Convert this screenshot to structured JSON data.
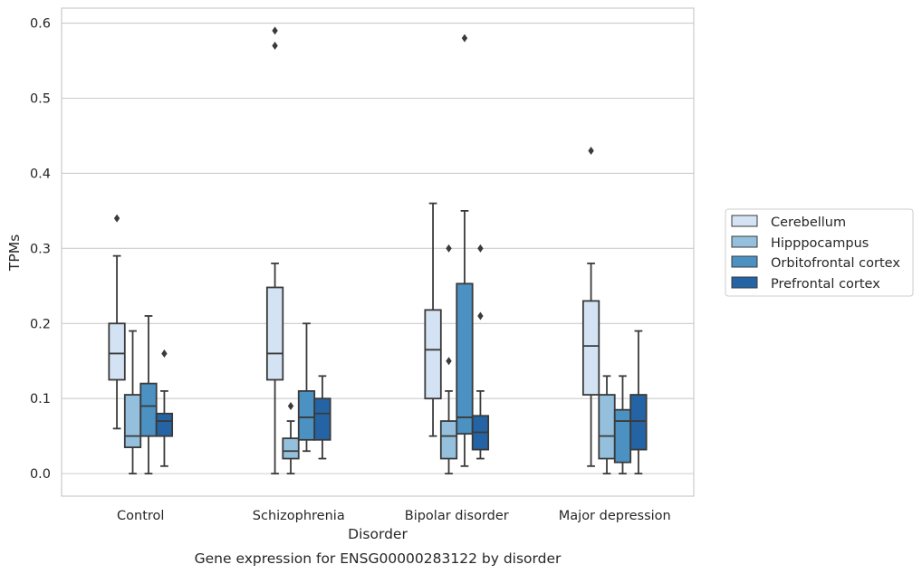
{
  "chart_data": {
    "type": "box",
    "caption": "Gene expression for ENSG00000283122 by disorder",
    "xlabel": "Disorder",
    "ylabel": "TPMs",
    "ylim": [
      -0.03,
      0.62
    ],
    "yticks": [
      "0.0",
      "0.1",
      "0.2",
      "0.3",
      "0.4",
      "0.5",
      "0.6"
    ],
    "ytick_values": [
      0.0,
      0.1,
      0.2,
      0.3,
      0.4,
      0.5,
      0.6
    ],
    "grid": true,
    "legend_position": "right",
    "categories": [
      "Control",
      "Schizophrenia",
      "Bipolar disorder",
      "Major depression"
    ],
    "series": [
      {
        "name": "Cerebellum",
        "color": "#d4e3f3",
        "boxes": [
          {
            "whislo": 0.06,
            "q1": 0.125,
            "med": 0.16,
            "q3": 0.2,
            "whishi": 0.29,
            "fliers": [
              0.34
            ]
          },
          {
            "whislo": 0.0,
            "q1": 0.125,
            "med": 0.16,
            "q3": 0.248,
            "whishi": 0.28,
            "fliers": [
              0.57,
              0.59
            ]
          },
          {
            "whislo": 0.05,
            "q1": 0.1,
            "med": 0.165,
            "q3": 0.218,
            "whishi": 0.36,
            "fliers": []
          },
          {
            "whislo": 0.01,
            "q1": 0.105,
            "med": 0.17,
            "q3": 0.23,
            "whishi": 0.28,
            "fliers": [
              0.43
            ]
          }
        ]
      },
      {
        "name": "Hipppocampus",
        "color": "#94c0dd",
        "boxes": [
          {
            "whislo": 0.0,
            "q1": 0.035,
            "med": 0.05,
            "q3": 0.105,
            "whishi": 0.19,
            "fliers": []
          },
          {
            "whislo": 0.0,
            "q1": 0.02,
            "med": 0.03,
            "q3": 0.047,
            "whishi": 0.07,
            "fliers": [
              0.09
            ]
          },
          {
            "whislo": 0.0,
            "q1": 0.02,
            "med": 0.05,
            "q3": 0.07,
            "whishi": 0.11,
            "fliers": [
              0.15,
              0.3
            ]
          },
          {
            "whislo": 0.0,
            "q1": 0.02,
            "med": 0.05,
            "q3": 0.105,
            "whishi": 0.13,
            "fliers": []
          }
        ]
      },
      {
        "name": "Orbitofrontal cortex",
        "color": "#4b92c3",
        "boxes": [
          {
            "whislo": 0.0,
            "q1": 0.05,
            "med": 0.09,
            "q3": 0.12,
            "whishi": 0.21,
            "fliers": []
          },
          {
            "whislo": 0.03,
            "q1": 0.045,
            "med": 0.075,
            "q3": 0.11,
            "whishi": 0.2,
            "fliers": []
          },
          {
            "whislo": 0.01,
            "q1": 0.053,
            "med": 0.075,
            "q3": 0.253,
            "whishi": 0.35,
            "fliers": [
              0.58
            ]
          },
          {
            "whislo": 0.0,
            "q1": 0.015,
            "med": 0.07,
            "q3": 0.085,
            "whishi": 0.13,
            "fliers": []
          }
        ]
      },
      {
        "name": "Prefrontal cortex",
        "color": "#2464a5",
        "boxes": [
          {
            "whislo": 0.01,
            "q1": 0.05,
            "med": 0.07,
            "q3": 0.08,
            "whishi": 0.11,
            "fliers": [
              0.16
            ]
          },
          {
            "whislo": 0.02,
            "q1": 0.045,
            "med": 0.08,
            "q3": 0.1,
            "whishi": 0.13,
            "fliers": []
          },
          {
            "whislo": 0.02,
            "q1": 0.032,
            "med": 0.055,
            "q3": 0.077,
            "whishi": 0.11,
            "fliers": [
              0.21,
              0.3
            ]
          },
          {
            "whislo": 0.0,
            "q1": 0.032,
            "med": 0.07,
            "q3": 0.105,
            "whishi": 0.19,
            "fliers": []
          }
        ]
      }
    ]
  }
}
